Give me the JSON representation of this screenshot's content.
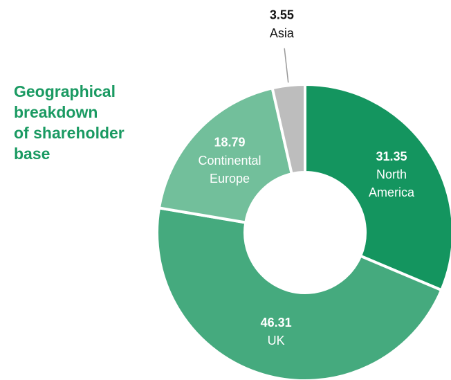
{
  "chart_data": {
    "type": "donut",
    "title": "Geographical\nbreakdown\nof shareholder\nbase",
    "categories": [
      "North America",
      "UK",
      "Continental Europe",
      "Asia"
    ],
    "values": [
      31.35,
      46.31,
      18.79,
      3.55
    ],
    "colors": [
      "#14955f",
      "#45aa7e",
      "#72bf9b",
      "#bdbdbd"
    ],
    "title_color": "#1a9a62"
  }
}
